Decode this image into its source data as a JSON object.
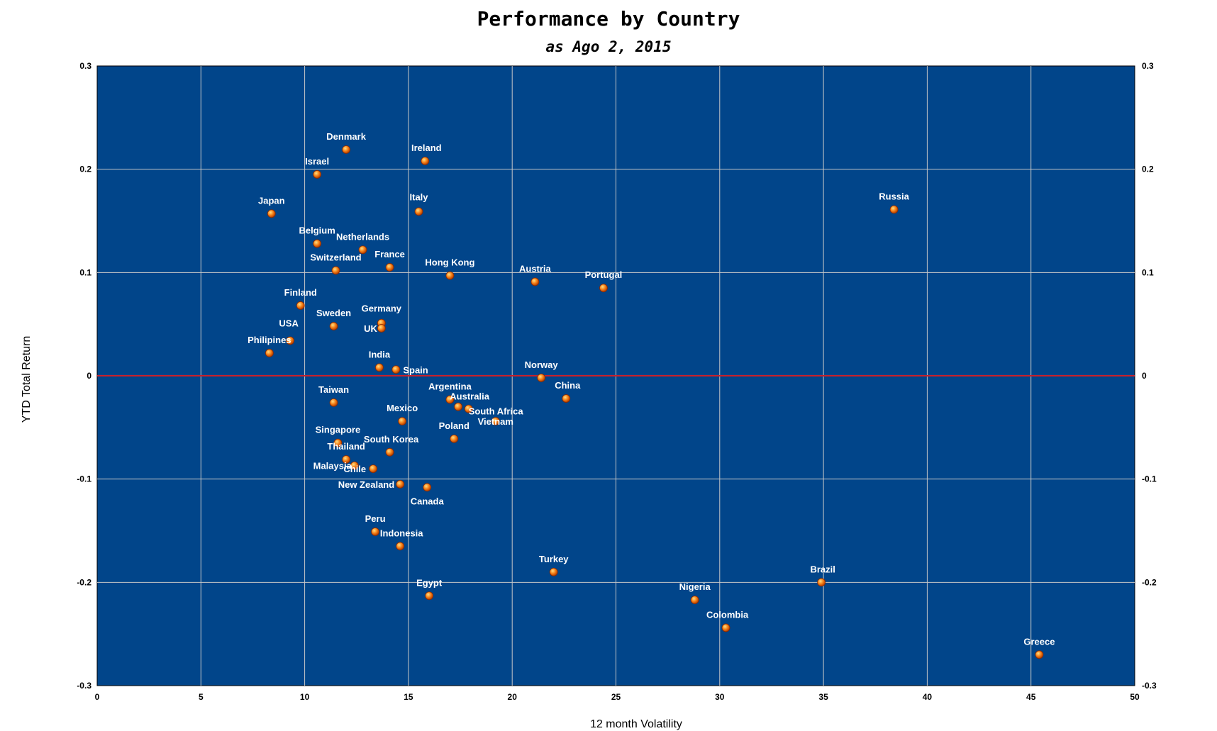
{
  "chart_data": {
    "type": "scatter",
    "title": "Performance by Country",
    "subtitle": "as Ago 2, 2015",
    "xlabel": "12 month Volatility",
    "ylabel": "YTD Total Return",
    "xlim": [
      0,
      50
    ],
    "ylim": [
      -0.3,
      0.3
    ],
    "x_ticks": [
      "0",
      "5",
      "10",
      "15",
      "20",
      "25",
      "30",
      "35",
      "40",
      "45",
      "50"
    ],
    "y_ticks": [
      "0.3",
      "0.2",
      "0.1",
      "0",
      "-0.1",
      "-0.2",
      "-0.3"
    ],
    "y_ticks_right": [
      "0.3",
      "0.2",
      "0.1",
      "0",
      "-0.1",
      "-0.2",
      "-0.3"
    ],
    "grid": true,
    "zero_line": true,
    "colors": {
      "plot_background": "#01458a",
      "grid": "#c8c8c8",
      "zero_line": "#c8202a",
      "marker": "#f57f17",
      "marker_highlight": "#ffe082",
      "label": "#ffffff"
    },
    "points": [
      {
        "label": "Denmark",
        "x": 12.0,
        "y": 0.219
      },
      {
        "label": "Ireland",
        "x": 15.8,
        "y": 0.208
      },
      {
        "label": "Israel",
        "x": 10.6,
        "y": 0.195
      },
      {
        "label": "Japan",
        "x": 8.4,
        "y": 0.157
      },
      {
        "label": "Italy",
        "x": 15.5,
        "y": 0.159
      },
      {
        "label": "Russia",
        "x": 38.4,
        "y": 0.161
      },
      {
        "label": "Belgium",
        "x": 10.6,
        "y": 0.128
      },
      {
        "label": "Netherlands",
        "x": 12.8,
        "y": 0.122
      },
      {
        "label": "Switzerland",
        "x": 11.5,
        "y": 0.102
      },
      {
        "label": "France",
        "x": 14.1,
        "y": 0.105
      },
      {
        "label": "Hong Kong",
        "x": 17.0,
        "y": 0.097
      },
      {
        "label": "Austria",
        "x": 21.1,
        "y": 0.091
      },
      {
        "label": "Portugal",
        "x": 24.4,
        "y": 0.085
      },
      {
        "label": "Finland",
        "x": 9.8,
        "y": 0.068
      },
      {
        "label": "Sweden",
        "x": 11.4,
        "y": 0.048
      },
      {
        "label": "Germany",
        "x": 13.7,
        "y": 0.051
      },
      {
        "label": "UK",
        "x": 13.7,
        "y": 0.046
      },
      {
        "label": "USA",
        "x": 9.3,
        "y": 0.034
      },
      {
        "label": "Philipines",
        "x": 8.3,
        "y": 0.022
      },
      {
        "label": "India",
        "x": 13.6,
        "y": 0.008
      },
      {
        "label": "Spain",
        "x": 14.4,
        "y": 0.006
      },
      {
        "label": "Norway",
        "x": 21.4,
        "y": -0.002
      },
      {
        "label": "China",
        "x": 22.6,
        "y": -0.022
      },
      {
        "label": "Argentina",
        "x": 17.0,
        "y": -0.023
      },
      {
        "label": "Australia",
        "x": 17.4,
        "y": -0.03
      },
      {
        "label": "South Africa",
        "x": 17.9,
        "y": -0.032
      },
      {
        "label": "Vietnam",
        "x": 19.2,
        "y": -0.044
      },
      {
        "label": "Taiwan",
        "x": 11.4,
        "y": -0.026
      },
      {
        "label": "Mexico",
        "x": 14.7,
        "y": -0.044
      },
      {
        "label": "Poland",
        "x": 17.2,
        "y": -0.061
      },
      {
        "label": "Singapore",
        "x": 11.6,
        "y": -0.065
      },
      {
        "label": "South Korea",
        "x": 14.1,
        "y": -0.074
      },
      {
        "label": "Thailand",
        "x": 12.0,
        "y": -0.081
      },
      {
        "label": "Malaysia",
        "x": 12.4,
        "y": -0.087
      },
      {
        "label": "Chile",
        "x": 13.3,
        "y": -0.09
      },
      {
        "label": "New Zealand",
        "x": 14.6,
        "y": -0.105
      },
      {
        "label": "Canada",
        "x": 15.9,
        "y": -0.108
      },
      {
        "label": "Peru",
        "x": 13.4,
        "y": -0.151
      },
      {
        "label": "Indonesia",
        "x": 14.6,
        "y": -0.165
      },
      {
        "label": "Turkey",
        "x": 22.0,
        "y": -0.19
      },
      {
        "label": "Brazil",
        "x": 34.9,
        "y": -0.2
      },
      {
        "label": "Egypt",
        "x": 16.0,
        "y": -0.213
      },
      {
        "label": "Nigeria",
        "x": 28.8,
        "y": -0.217
      },
      {
        "label": "Colombia",
        "x": 30.3,
        "y": -0.244
      },
      {
        "label": "Greece",
        "x": 45.4,
        "y": -0.27
      }
    ]
  }
}
